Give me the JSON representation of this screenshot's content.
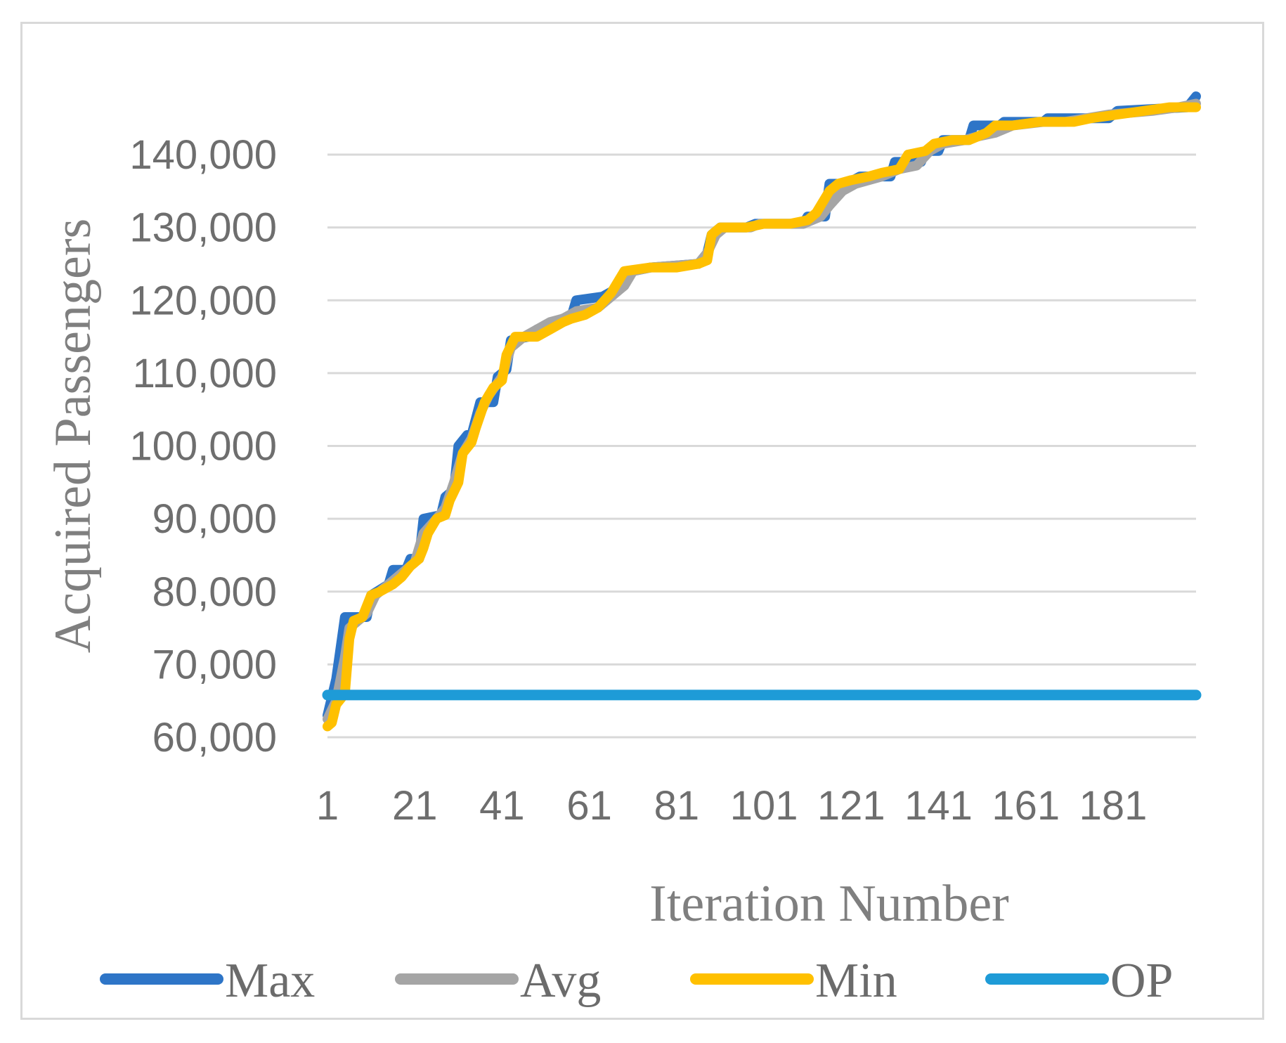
{
  "chart_data": {
    "type": "line",
    "title": "",
    "xlabel": "Iteration Number",
    "ylabel": "Acquired Passengers",
    "x_range": [
      1,
      200
    ],
    "ylim": [
      60000,
      145000
    ],
    "x_ticks": [
      "1",
      "21",
      "41",
      "61",
      "81",
      "101",
      "121",
      "141",
      "161",
      "181"
    ],
    "y_ticks": [
      "60,000",
      "70,000",
      "80,000",
      "90,000",
      "100,000",
      "110,000",
      "120,000",
      "130,000",
      "140,000"
    ],
    "y_tick_values": [
      60000,
      70000,
      80000,
      90000,
      100000,
      110000,
      120000,
      130000,
      140000
    ],
    "grid": "horizontal",
    "legend_position": "bottom",
    "series": [
      {
        "name": "Max",
        "color": "#2e75c7",
        "points": [
          [
            1,
            63000
          ],
          [
            3,
            68000
          ],
          [
            5,
            76500
          ],
          [
            10,
            76500
          ],
          [
            11,
            79500
          ],
          [
            15,
            81000
          ],
          [
            16,
            83000
          ],
          [
            19,
            83000
          ],
          [
            20,
            84500
          ],
          [
            22,
            84500
          ],
          [
            23,
            90000
          ],
          [
            27,
            90500
          ],
          [
            28,
            93000
          ],
          [
            30,
            94000
          ],
          [
            31,
            100000
          ],
          [
            33,
            101500
          ],
          [
            34,
            101500
          ],
          [
            36,
            106000
          ],
          [
            39,
            106000
          ],
          [
            40,
            109500
          ],
          [
            42,
            110500
          ],
          [
            43,
            114500
          ],
          [
            47,
            115000
          ],
          [
            49,
            116000
          ],
          [
            52,
            116500
          ],
          [
            55,
            117500
          ],
          [
            57,
            118000
          ],
          [
            58,
            120000
          ],
          [
            64,
            120500
          ],
          [
            67,
            121500
          ],
          [
            69,
            123000
          ],
          [
            71,
            124000
          ],
          [
            75,
            124500
          ],
          [
            86,
            125000
          ],
          [
            88,
            126500
          ],
          [
            89,
            129000
          ],
          [
            91,
            130000
          ],
          [
            97,
            130000
          ],
          [
            99,
            130500
          ],
          [
            110,
            130500
          ],
          [
            111,
            131500
          ],
          [
            115,
            131500
          ],
          [
            116,
            136000
          ],
          [
            120,
            136000
          ],
          [
            123,
            137000
          ],
          [
            130,
            137000
          ],
          [
            131,
            139000
          ],
          [
            137,
            139000
          ],
          [
            138,
            140500
          ],
          [
            141,
            140500
          ],
          [
            142,
            142000
          ],
          [
            148,
            142000
          ],
          [
            149,
            144000
          ],
          [
            155,
            144000
          ],
          [
            156,
            144500
          ],
          [
            165,
            144500
          ],
          [
            166,
            145000
          ],
          [
            180,
            145000
          ],
          [
            182,
            146000
          ],
          [
            198,
            146500
          ],
          [
            200,
            148000
          ]
        ]
      },
      {
        "name": "Avg",
        "color": "#a5a5a5",
        "points": [
          [
            1,
            62500
          ],
          [
            3,
            65000
          ],
          [
            5,
            71000
          ],
          [
            6,
            75000
          ],
          [
            10,
            77000
          ],
          [
            12,
            79500
          ],
          [
            15,
            81000
          ],
          [
            18,
            82500
          ],
          [
            21,
            84000
          ],
          [
            23,
            88000
          ],
          [
            26,
            90000
          ],
          [
            28,
            91500
          ],
          [
            30,
            95000
          ],
          [
            32,
            99000
          ],
          [
            34,
            101000
          ],
          [
            36,
            104500
          ],
          [
            38,
            107000
          ],
          [
            41,
            109500
          ],
          [
            43,
            113500
          ],
          [
            46,
            115000
          ],
          [
            49,
            116000
          ],
          [
            52,
            117000
          ],
          [
            55,
            117500
          ],
          [
            58,
            118500
          ],
          [
            63,
            119000
          ],
          [
            66,
            120500
          ],
          [
            69,
            122000
          ],
          [
            71,
            124000
          ],
          [
            75,
            124500
          ],
          [
            86,
            125000
          ],
          [
            88,
            126500
          ],
          [
            90,
            129000
          ],
          [
            92,
            130000
          ],
          [
            98,
            130000
          ],
          [
            100,
            130500
          ],
          [
            110,
            130500
          ],
          [
            114,
            131500
          ],
          [
            116,
            133000
          ],
          [
            119,
            135000
          ],
          [
            122,
            136000
          ],
          [
            128,
            137000
          ],
          [
            132,
            138000
          ],
          [
            136,
            138500
          ],
          [
            139,
            140500
          ],
          [
            142,
            141500
          ],
          [
            147,
            142000
          ],
          [
            150,
            142500
          ],
          [
            154,
            143000
          ],
          [
            158,
            144000
          ],
          [
            165,
            144500
          ],
          [
            170,
            144500
          ],
          [
            175,
            145000
          ],
          [
            180,
            145500
          ],
          [
            190,
            146000
          ],
          [
            196,
            146500
          ],
          [
            200,
            147000
          ]
        ]
      },
      {
        "name": "Min",
        "color": "#ffc000",
        "points": [
          [
            1,
            61500
          ],
          [
            2,
            62000
          ],
          [
            3,
            64500
          ],
          [
            5,
            66000
          ],
          [
            6,
            73500
          ],
          [
            7,
            76000
          ],
          [
            9,
            76500
          ],
          [
            11,
            79500
          ],
          [
            13,
            80000
          ],
          [
            16,
            81000
          ],
          [
            18,
            82000
          ],
          [
            20,
            83500
          ],
          [
            22,
            84500
          ],
          [
            23,
            86000
          ],
          [
            24,
            88000
          ],
          [
            26,
            90000
          ],
          [
            28,
            90500
          ],
          [
            29,
            92500
          ],
          [
            31,
            95000
          ],
          [
            32,
            99000
          ],
          [
            34,
            100500
          ],
          [
            35,
            102500
          ],
          [
            37,
            106000
          ],
          [
            39,
            108000
          ],
          [
            41,
            109000
          ],
          [
            42,
            112500
          ],
          [
            44,
            115000
          ],
          [
            49,
            115000
          ],
          [
            52,
            116000
          ],
          [
            55,
            117000
          ],
          [
            57,
            117500
          ],
          [
            60,
            118000
          ],
          [
            63,
            119000
          ],
          [
            66,
            121000
          ],
          [
            69,
            124000
          ],
          [
            75,
            124500
          ],
          [
            81,
            124500
          ],
          [
            86,
            125000
          ],
          [
            88,
            125500
          ],
          [
            89,
            129000
          ],
          [
            91,
            130000
          ],
          [
            97,
            130000
          ],
          [
            101,
            130500
          ],
          [
            107,
            130500
          ],
          [
            111,
            131000
          ],
          [
            113,
            132000
          ],
          [
            116,
            135000
          ],
          [
            118,
            136000
          ],
          [
            121,
            136500
          ],
          [
            125,
            137000
          ],
          [
            128,
            137500
          ],
          [
            132,
            138000
          ],
          [
            134,
            140000
          ],
          [
            138,
            140500
          ],
          [
            140,
            141500
          ],
          [
            144,
            142000
          ],
          [
            148,
            142000
          ],
          [
            152,
            143000
          ],
          [
            154,
            144000
          ],
          [
            158,
            144000
          ],
          [
            164,
            144500
          ],
          [
            172,
            144500
          ],
          [
            176,
            145000
          ],
          [
            182,
            145500
          ],
          [
            188,
            146000
          ],
          [
            194,
            146500
          ],
          [
            200,
            146500
          ]
        ]
      },
      {
        "name": "OP",
        "color": "#1e9bd7",
        "points": [
          [
            1,
            65800
          ],
          [
            200,
            65800
          ]
        ]
      }
    ]
  }
}
